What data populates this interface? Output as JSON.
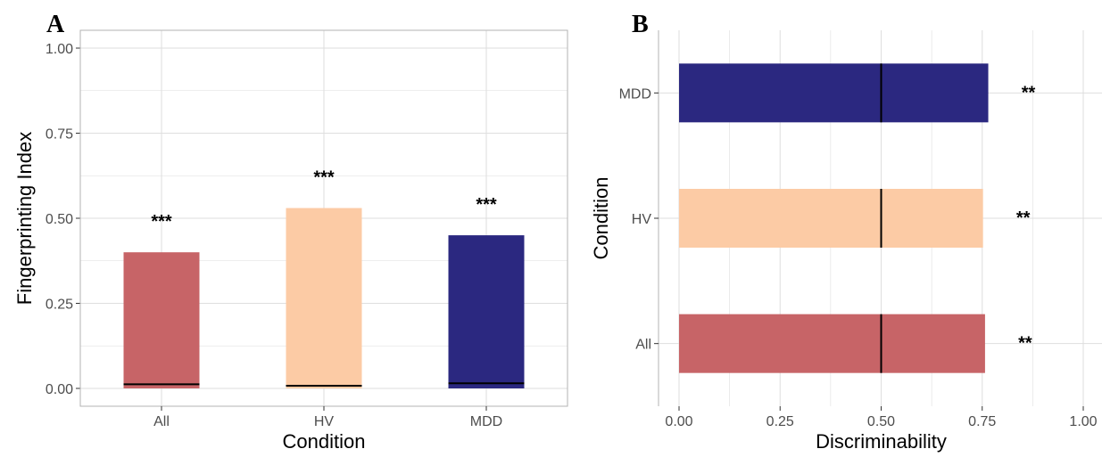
{
  "chart_data": [
    {
      "panel": "A",
      "type": "bar",
      "orientation": "vertical",
      "categories": [
        "All",
        "HV",
        "MDD"
      ],
      "values": [
        0.4,
        0.53,
        0.45
      ],
      "null_values": [
        0.012,
        0.008,
        0.015
      ],
      "significance": [
        "***",
        "***",
        "***"
      ],
      "colors": [
        "#c76467",
        "#fccba5",
        "#2b2880"
      ],
      "xlabel": "Condition",
      "ylabel": "Fingerprinting Index",
      "ylim": [
        0,
        1.0
      ],
      "yticks": [
        0,
        0.25,
        0.5,
        0.75,
        1.0
      ],
      "ytick_labels": [
        "0.00",
        "0.25",
        "0.50",
        "0.75",
        "1.00"
      ],
      "grid": true,
      "legend": "none"
    },
    {
      "panel": "B",
      "type": "bar",
      "orientation": "horizontal",
      "categories": [
        "All",
        "HV",
        "MDD"
      ],
      "values": [
        0.757,
        0.752,
        0.765
      ],
      "null_values": [
        0.5,
        0.5,
        0.5
      ],
      "significance": [
        "**",
        "**",
        "**"
      ],
      "colors": [
        "#c76467",
        "#fccba5",
        "#2b2880"
      ],
      "xlabel": "Discriminability",
      "ylabel": "Condition",
      "xlim": [
        0,
        1.0
      ],
      "xticks": [
        0,
        0.25,
        0.5,
        0.75,
        1.0
      ],
      "xtick_labels": [
        "0.00",
        "0.25",
        "0.50",
        "0.75",
        "1.00"
      ],
      "grid": true,
      "legend": "none"
    }
  ],
  "panel_labels": {
    "a": "A",
    "b": "B"
  }
}
